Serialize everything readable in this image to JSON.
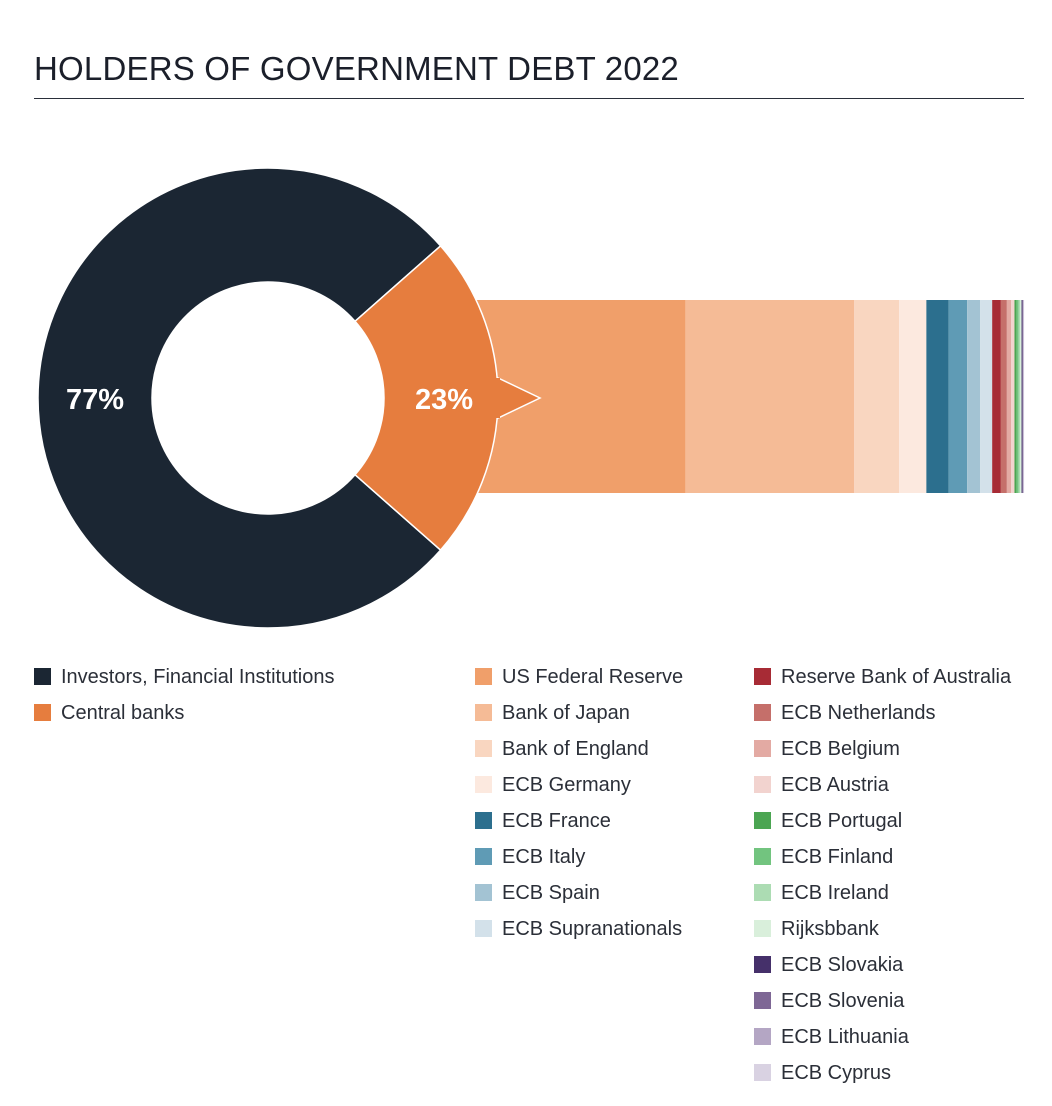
{
  "title": "HOLDERS OF GOVERNMENT DEBT 2022",
  "chart_data": [
    {
      "type": "pie",
      "donut": true,
      "slices": [
        {
          "name": "Investors, Financial Institutions",
          "value": 77,
          "label": "77%",
          "color": "#1b2633"
        },
        {
          "name": "Central banks",
          "value": 23,
          "label": "23%",
          "color": "#e67d3e"
        }
      ]
    },
    {
      "type": "bar",
      "stacked": true,
      "orientation": "horizontal",
      "breakdown_of": "Central banks",
      "series": [
        {
          "name": "US Federal Reserve",
          "value": 38.5,
          "color": "#f09f6a"
        },
        {
          "name": "Bank of Japan",
          "value": 31,
          "color": "#f5bb96"
        },
        {
          "name": "Bank of England",
          "value": 8.3,
          "color": "#f9d6c0"
        },
        {
          "name": "ECB Germany",
          "value": 5,
          "color": "#fce9df"
        },
        {
          "name": "ECB France",
          "value": 4.1,
          "color": "#2c6f8e"
        },
        {
          "name": "ECB Italy",
          "value": 3.4,
          "color": "#5f9bb5"
        },
        {
          "name": "ECB Spain",
          "value": 2.4,
          "color": "#a3c3d3"
        },
        {
          "name": "ECB Supranationals",
          "value": 2.2,
          "color": "#d3e1ea"
        },
        {
          "name": "Reserve Bank of Australia",
          "value": 1.6,
          "color": "#a72b35"
        },
        {
          "name": "ECB Netherlands",
          "value": 1.1,
          "color": "#c56f6a"
        },
        {
          "name": "ECB Belgium",
          "value": 0.8,
          "color": "#e3aaa3"
        },
        {
          "name": "ECB Austria",
          "value": 0.6,
          "color": "#f2d3cf"
        },
        {
          "name": "ECB Portugal",
          "value": 0.4,
          "color": "#4ba552"
        },
        {
          "name": "ECB Finland",
          "value": 0.35,
          "color": "#72c47f"
        },
        {
          "name": "ECB Ireland",
          "value": 0.3,
          "color": "#acdcb3"
        },
        {
          "name": "Rijksbbank",
          "value": 0.25,
          "color": "#d9efdb"
        },
        {
          "name": "ECB Slovakia",
          "value": 0.15,
          "color": "#45306a"
        },
        {
          "name": "ECB Slovenia",
          "value": 0.12,
          "color": "#7e6795"
        },
        {
          "name": "ECB Lithuania",
          "value": 0.1,
          "color": "#b4a6c4"
        },
        {
          "name": "ECB Cyprus",
          "value": 0.08,
          "color": "#d9d2e2"
        }
      ]
    }
  ]
}
